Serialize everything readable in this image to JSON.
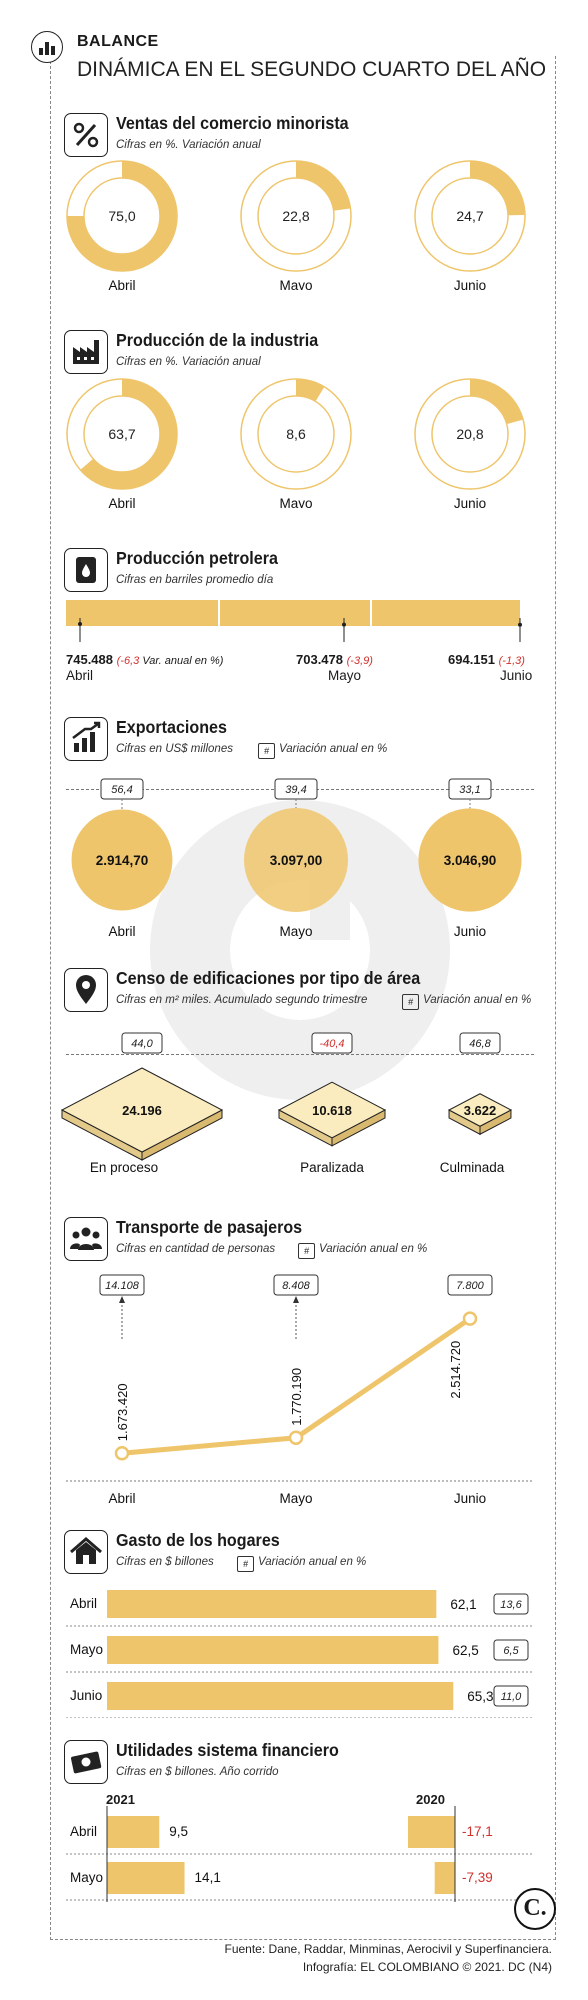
{
  "header": {
    "title": "BALANCE",
    "subtitle": "DINÁMICA EN EL SEGUNDO CUARTO DEL AÑO"
  },
  "chart_data": [
    {
      "type": "donut",
      "title": "Ventas del comercio minorista",
      "subtitle": "Cifras en %. Variación anual",
      "categories": [
        "Abril",
        "Mayo",
        "Junio"
      ],
      "values": [
        75.0,
        22.8,
        24.7
      ],
      "value_labels": [
        "75,0",
        "22,8",
        "24,7"
      ],
      "color": "#efc56b"
    },
    {
      "type": "donut",
      "title": "Producción de la industria",
      "subtitle": "Cifras en %. Variación anual",
      "categories": [
        "Abril",
        "Mayo",
        "Junio"
      ],
      "values": [
        63.7,
        8.6,
        20.8
      ],
      "value_labels": [
        "63,7",
        "8,6",
        "20,8"
      ],
      "color": "#efc56b"
    },
    {
      "type": "bar",
      "title": "Producción petrolera",
      "subtitle": "Cifras en barriles promedio día",
      "categories": [
        "Abril",
        "Mayo",
        "Junio"
      ],
      "values": [
        745488,
        703478,
        694151
      ],
      "value_labels": [
        "745.488",
        "703.478",
        "694.151"
      ],
      "changes": [
        "-6,3",
        "-3,9",
        "-1,3"
      ],
      "change_note": " Var. anual en %"
    },
    {
      "type": "bubble",
      "title": "Exportaciones",
      "subtitle": "Cifras en US$ millones",
      "var_label": "Variación anual en %",
      "categories": [
        "Abril",
        "Mayo",
        "Junio"
      ],
      "values": [
        2914.7,
        3097.0,
        3046.9
      ],
      "value_labels": [
        "2.914,70",
        "3.097,00",
        "3.046,90"
      ],
      "changes": [
        "56,4",
        "39,4",
        "33,1"
      ]
    },
    {
      "type": "area",
      "title": "Censo de edificaciones por tipo de área",
      "subtitle": "Cifras en m² miles. Acumulado segundo trimestre",
      "var_label": "Variación anual en %",
      "categories": [
        "En proceso",
        "Paralizada",
        "Culminada"
      ],
      "values": [
        24196,
        10618,
        3622
      ],
      "value_labels": [
        "24.196",
        "10.618",
        "3.622"
      ],
      "changes": [
        "44,0",
        "-40,4",
        "46,8"
      ]
    },
    {
      "type": "line",
      "title": "Transporte de pasajeros",
      "subtitle": "Cifras en cantidad de personas",
      "var_label": "Variación anual en %",
      "categories": [
        "Abril",
        "Mayo",
        "Junio"
      ],
      "values": [
        1673420,
        1770190,
        2514720
      ],
      "value_labels": [
        "1.673.420",
        "1.770.190",
        "2.514.720"
      ],
      "changes": [
        "14.108",
        "8.408",
        "7.800"
      ]
    },
    {
      "type": "bar",
      "orientation": "horizontal",
      "title": "Gasto de los hogares",
      "subtitle": "Cifras en $ billones",
      "var_label": "Variación anual en %",
      "categories": [
        "Abril",
        "Mayo",
        "Junio"
      ],
      "values": [
        62.1,
        62.5,
        65.3
      ],
      "value_labels": [
        "62,1",
        "62,5",
        "65,3"
      ],
      "changes": [
        "13,6",
        "6,5",
        "11,0"
      ]
    },
    {
      "type": "bar",
      "orientation": "horizontal",
      "title": "Utilidades sistema financiero",
      "subtitle": "Cifras en $ billones. Año corrido",
      "categories": [
        "Abril",
        "Mayo"
      ],
      "series": [
        {
          "name": "2021",
          "values": [
            9.5,
            14.1
          ],
          "value_labels": [
            "9,5",
            "14,1"
          ]
        },
        {
          "name": "2020",
          "values": [
            -17.1,
            -7.39
          ],
          "value_labels": [
            "-17,1",
            "-7,39"
          ]
        }
      ]
    }
  ],
  "footer": {
    "source": "Fuente: Dane, Raddar, Minminas, Aerocivil y Superfinanciera.",
    "credit": "Infografía: EL COLOMBIANO © 2021. DC (N4)",
    "logo": "C."
  }
}
